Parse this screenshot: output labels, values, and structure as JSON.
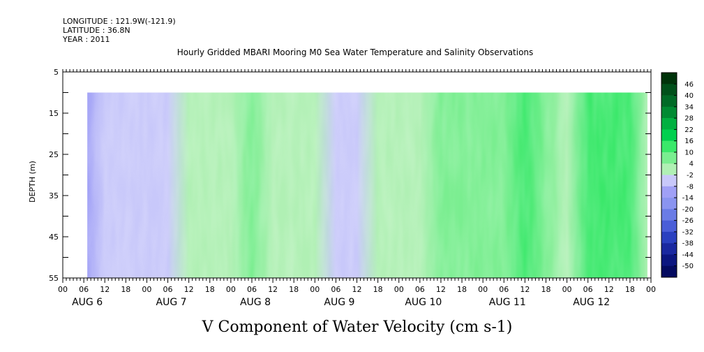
{
  "header": {
    "longitude": "LONGITUDE : 121.9W(-121.9)",
    "latitude": "LATITUDE : 36.8N",
    "year": "YEAR : 2011"
  },
  "chart_data": {
    "type": "heatmap",
    "title": "Hourly Gridded MBARI Mooring M0 Sea Water Temperature and Salinity Observations",
    "xlabel": "V Component of Water Velocity (cm s-1)",
    "ylabel": "DEPTH (m)",
    "y_inverted": true,
    "ylim": [
      5,
      55
    ],
    "y_ticks": [
      5,
      15,
      25,
      35,
      45,
      55
    ],
    "data_depth_range": [
      10,
      55
    ],
    "x_start_day": "AUG 6",
    "xlim_hours": [
      0,
      168
    ],
    "data_start_hour": 7,
    "data_end_hour": 167,
    "x_hour_labels": [
      "00",
      "06",
      "12",
      "18",
      "00",
      "06",
      "12",
      "18",
      "00",
      "06",
      "12",
      "18",
      "00",
      "06",
      "12",
      "18",
      "00",
      "06",
      "12",
      "18",
      "00",
      "06",
      "12",
      "18",
      "00",
      "06",
      "12",
      "18",
      "00"
    ],
    "x_day_labels": [
      "AUG  6",
      "AUG  7",
      "AUG  8",
      "AUG  9",
      "AUG 10",
      "AUG 11",
      "AUG 12"
    ],
    "colorbar_levels": [
      46,
      40,
      34,
      28,
      22,
      16,
      10,
      4,
      -2,
      -8,
      -14,
      -20,
      -26,
      -32,
      -38,
      -44,
      -50
    ],
    "colorbar_colors": [
      "#00330a",
      "#00501a",
      "#006a26",
      "#008a32",
      "#00b040",
      "#00d04e",
      "#3ae86a",
      "#7aee90",
      "#b0f0b4",
      "#c8c8fa",
      "#a0a0f6",
      "#8a94f0",
      "#6a7ce6",
      "#4a5ed8",
      "#2a40c0",
      "#1a28a0",
      "#0c1680",
      "#040a60"
    ],
    "hourly_mean_v": [
      [
        0,
        -6
      ],
      [
        6,
        -9
      ],
      [
        12,
        -7
      ],
      [
        18,
        -4
      ],
      [
        24,
        -6
      ],
      [
        30,
        -3
      ],
      [
        36,
        1
      ],
      [
        42,
        -2
      ],
      [
        48,
        2
      ],
      [
        54,
        5
      ],
      [
        60,
        3
      ],
      [
        66,
        -1
      ],
      [
        72,
        0
      ],
      [
        78,
        -4
      ],
      [
        84,
        -5
      ],
      [
        90,
        -2
      ],
      [
        96,
        3
      ],
      [
        102,
        2
      ],
      [
        108,
        4
      ],
      [
        114,
        6
      ],
      [
        120,
        5
      ],
      [
        126,
        9
      ],
      [
        132,
        14
      ],
      [
        138,
        7
      ],
      [
        144,
        1
      ],
      [
        150,
        12
      ],
      [
        156,
        15
      ],
      [
        162,
        10
      ],
      [
        167,
        3
      ]
    ]
  }
}
